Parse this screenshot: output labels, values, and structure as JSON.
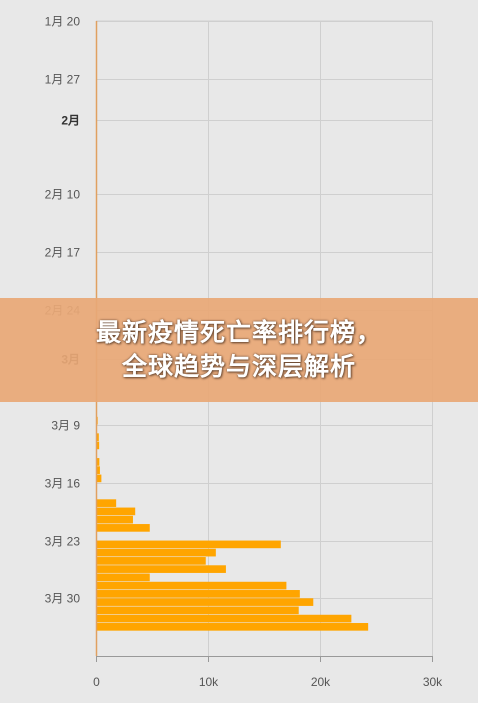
{
  "banner": {
    "line1": "最新疫情死亡率排行榜，",
    "line2": "全球趋势与深层解析"
  },
  "chart_data": {
    "type": "bar",
    "orientation": "horizontal",
    "title": "",
    "xlabel": "",
    "ylabel": "",
    "xlim": [
      0,
      30000
    ],
    "date_range": [
      "01-20",
      "04-06"
    ],
    "x_ticks": [
      {
        "value": 0,
        "label": "0"
      },
      {
        "value": 10000,
        "label": "10k"
      },
      {
        "value": 20000,
        "label": "20k"
      },
      {
        "value": 30000,
        "label": "30k"
      }
    ],
    "y_ticks": [
      {
        "date": "01-20",
        "label": "1月 20",
        "bold": false
      },
      {
        "date": "01-27",
        "label": "1月 27",
        "bold": false
      },
      {
        "date": "02-01",
        "label": "2月",
        "bold": true
      },
      {
        "date": "02-10",
        "label": "2月 10",
        "bold": false
      },
      {
        "date": "02-17",
        "label": "2月 17",
        "bold": false
      },
      {
        "date": "02-24",
        "label": "2月 24",
        "bold": false
      },
      {
        "date": "03-01",
        "label": "3月",
        "bold": true
      },
      {
        "date": "03-09",
        "label": "3月 9",
        "bold": false
      },
      {
        "date": "03-16",
        "label": "3月 16",
        "bold": false
      },
      {
        "date": "03-23",
        "label": "3月 23",
        "bold": false
      },
      {
        "date": "03-30",
        "label": "3月 30",
        "bold": false
      }
    ],
    "dates": [
      "03-08",
      "03-09",
      "03-10",
      "03-11",
      "03-12",
      "03-13",
      "03-14",
      "03-15",
      "03-16",
      "03-17",
      "03-18",
      "03-19",
      "03-20",
      "03-21",
      "03-22",
      "03-23",
      "03-24",
      "03-25",
      "03-26",
      "03-27",
      "03-28",
      "03-29",
      "03-30",
      "03-31",
      "04-01",
      "04-02",
      "04-03",
      "04-04",
      "04-05"
    ],
    "values": [
      150,
      0,
      250,
      280,
      0,
      300,
      350,
      480,
      0,
      0,
      1800,
      3500,
      3300,
      4800,
      0,
      16500,
      10700,
      9800,
      11600,
      4800,
      17000,
      18200,
      19400,
      18100,
      22800,
      24300,
      0,
      0,
      0
    ],
    "colors": {
      "bar": "#ffa500",
      "grid": "#cfcfcf",
      "axis": "#999999",
      "baseline": "#e0a060"
    }
  }
}
